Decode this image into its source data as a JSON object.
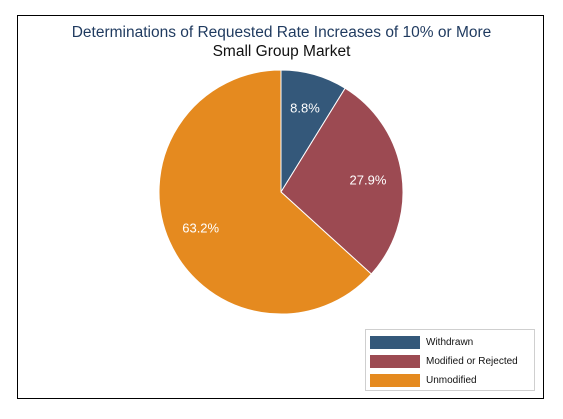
{
  "chart_data": {
    "type": "pie",
    "title": "Determinations of Requested Rate Increases of 10% or More",
    "subtitle": "Small Group Market",
    "categories": [
      "Withdrawn",
      "Modified or Rejected",
      "Unmodified"
    ],
    "values": [
      8.8,
      27.9,
      63.2
    ],
    "labels": [
      "8.8%",
      "27.9%",
      "63.2%"
    ],
    "colors": [
      "#34587a",
      "#9c4a52",
      "#e58a1f"
    ],
    "label_color": "#ffffff",
    "legend_position": "bottom-right",
    "start_angle": "12 o'clock, clockwise"
  }
}
